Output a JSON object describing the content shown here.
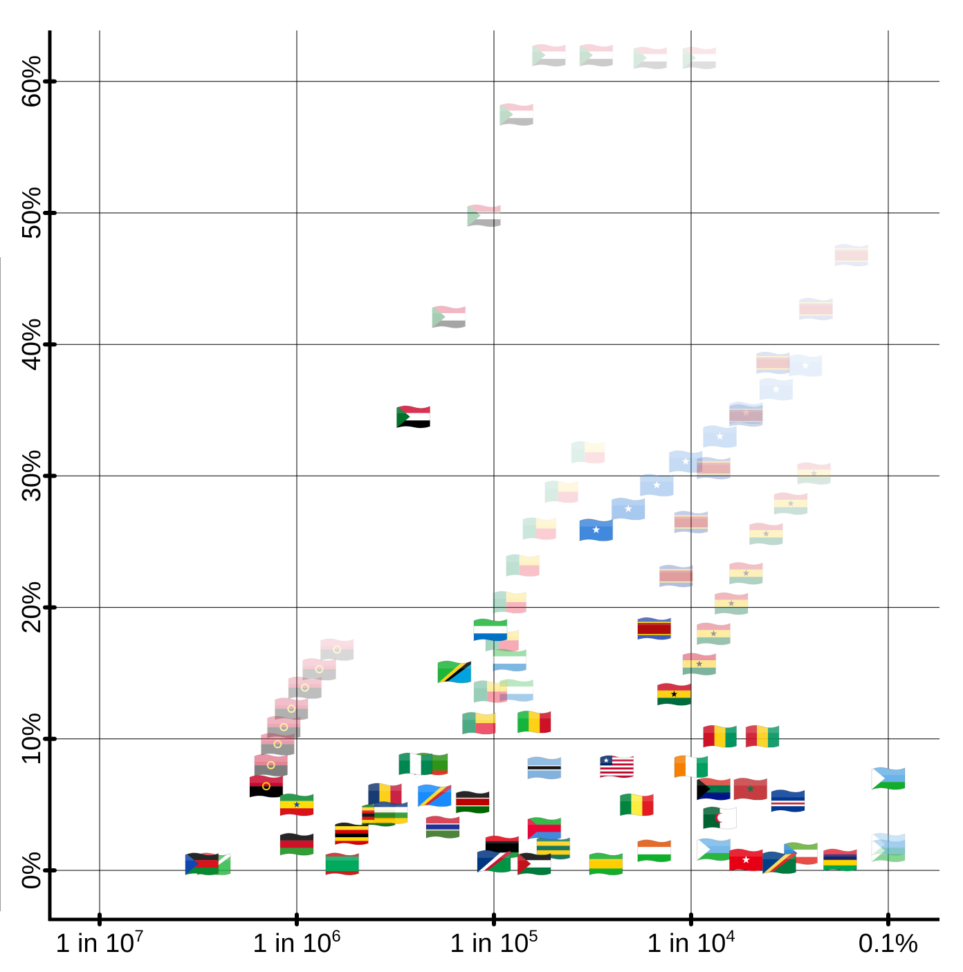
{
  "chart_data": {
    "type": "scatter",
    "title": "",
    "xlabel": "",
    "ylabel": "",
    "x_scale": "log",
    "x_ticks": [
      {
        "value": 1e-07,
        "label": "1 in 10",
        "sup": "7"
      },
      {
        "value": 1e-06,
        "label": "1 in 10",
        "sup": "6"
      },
      {
        "value": 1e-05,
        "label": "1 in 10",
        "sup": "5"
      },
      {
        "value": 0.0001,
        "label": "1 in 10",
        "sup": "4"
      },
      {
        "value": 0.001,
        "label": "0.1%",
        "sup": ""
      }
    ],
    "y_ticks": [
      {
        "value": 0,
        "label": "0%"
      },
      {
        "value": 10,
        "label": "10%"
      },
      {
        "value": 20,
        "label": "20%"
      },
      {
        "value": 30,
        "label": "30%"
      },
      {
        "value": 40,
        "label": "40%"
      },
      {
        "value": 50,
        "label": "50%"
      },
      {
        "value": 60,
        "label": "60%"
      }
    ],
    "xlim": [
      7.8e-08,
      0.0015
    ],
    "ylim": [
      -3.8,
      64
    ],
    "grid": true,
    "marker": "country flag (fading trails show earlier years)",
    "points": [
      {
        "flag": "sudan",
        "x": 3.9e-06,
        "y": 34.5,
        "opacity": 1.0
      },
      {
        "flag": "sudan",
        "x": 5.9e-06,
        "y": 42.1,
        "opacity": 0.35
      },
      {
        "flag": "sudan",
        "x": 8.9e-06,
        "y": 49.8,
        "opacity": 0.3
      },
      {
        "flag": "sudan",
        "x": 1.3e-05,
        "y": 57.5,
        "opacity": 0.25
      },
      {
        "flag": "sudan",
        "x": 1.9e-05,
        "y": 62.0,
        "opacity": 0.2
      },
      {
        "flag": "sudan",
        "x": 3.3e-05,
        "y": 62.0,
        "opacity": 0.2
      },
      {
        "flag": "sudan",
        "x": 6.2e-05,
        "y": 61.8,
        "opacity": 0.15
      },
      {
        "flag": "sudan",
        "x": 0.00011,
        "y": 61.8,
        "opacity": 0.12
      },
      {
        "flag": "somalia",
        "x": 3.3e-05,
        "y": 25.9,
        "opacity": 1.0
      },
      {
        "flag": "somalia",
        "x": 4.8e-05,
        "y": 27.5,
        "opacity": 0.45
      },
      {
        "flag": "somalia",
        "x": 6.7e-05,
        "y": 29.3,
        "opacity": 0.35
      },
      {
        "flag": "somalia",
        "x": 9.4e-05,
        "y": 31.1,
        "opacity": 0.3
      },
      {
        "flag": "somalia",
        "x": 0.00014,
        "y": 33.0,
        "opacity": 0.25
      },
      {
        "flag": "somalia",
        "x": 0.00019,
        "y": 34.8,
        "opacity": 0.2
      },
      {
        "flag": "somalia",
        "x": 0.00027,
        "y": 36.6,
        "opacity": 0.15
      },
      {
        "flag": "somalia",
        "x": 0.00038,
        "y": 38.4,
        "opacity": 0.12
      },
      {
        "flag": "eswatini",
        "x": 6.5e-05,
        "y": 18.4,
        "opacity": 1.0
      },
      {
        "flag": "eswatini",
        "x": 8.4e-05,
        "y": 22.4,
        "opacity": 0.4
      },
      {
        "flag": "eswatini",
        "x": 0.0001,
        "y": 26.5,
        "opacity": 0.35
      },
      {
        "flag": "eswatini",
        "x": 0.00013,
        "y": 30.6,
        "opacity": 0.3
      },
      {
        "flag": "eswatini",
        "x": 0.00019,
        "y": 34.6,
        "opacity": 0.25
      },
      {
        "flag": "eswatini",
        "x": 0.00026,
        "y": 38.6,
        "opacity": 0.2
      },
      {
        "flag": "eswatini",
        "x": 0.00043,
        "y": 42.7,
        "opacity": 0.15
      },
      {
        "flag": "eswatini",
        "x": 0.00065,
        "y": 46.8,
        "opacity": 0.12
      },
      {
        "flag": "ghana",
        "x": 8.2e-05,
        "y": 13.4,
        "opacity": 1.0
      },
      {
        "flag": "ghana",
        "x": 0.00011,
        "y": 15.7,
        "opacity": 0.5
      },
      {
        "flag": "ghana",
        "x": 0.00013,
        "y": 18.0,
        "opacity": 0.4
      },
      {
        "flag": "ghana",
        "x": 0.00016,
        "y": 20.3,
        "opacity": 0.35
      },
      {
        "flag": "ghana",
        "x": 0.00019,
        "y": 22.6,
        "opacity": 0.3
      },
      {
        "flag": "ghana",
        "x": 0.00024,
        "y": 25.6,
        "opacity": 0.25
      },
      {
        "flag": "ghana",
        "x": 0.00032,
        "y": 27.9,
        "opacity": 0.2
      },
      {
        "flag": "ghana",
        "x": 0.00042,
        "y": 30.2,
        "opacity": 0.15
      },
      {
        "flag": "benin",
        "x": 8.4e-06,
        "y": 11.2,
        "opacity": 0.7
      },
      {
        "flag": "benin",
        "x": 9.6e-06,
        "y": 13.6,
        "opacity": 0.4
      },
      {
        "flag": "benin",
        "x": 1.1e-05,
        "y": 17.5,
        "opacity": 0.35
      },
      {
        "flag": "benin",
        "x": 1.2e-05,
        "y": 20.4,
        "opacity": 0.3
      },
      {
        "flag": "benin",
        "x": 1.4e-05,
        "y": 23.2,
        "opacity": 0.25
      },
      {
        "flag": "benin",
        "x": 1.7e-05,
        "y": 26.0,
        "opacity": 0.2
      },
      {
        "flag": "benin",
        "x": 2.2e-05,
        "y": 28.8,
        "opacity": 0.15
      },
      {
        "flag": "benin",
        "x": 3e-05,
        "y": 31.8,
        "opacity": 0.12
      },
      {
        "flag": "sierra-leone",
        "x": 9.6e-06,
        "y": 18.3,
        "opacity": 1.0
      },
      {
        "flag": "sierra-leone",
        "x": 1.2e-05,
        "y": 16.0,
        "opacity": 0.5
      },
      {
        "flag": "sierra-leone",
        "x": 1.3e-05,
        "y": 13.7,
        "opacity": 0.35
      },
      {
        "flag": "tanzania",
        "x": 6.3e-06,
        "y": 15.1,
        "opacity": 1.0
      },
      {
        "flag": "angola",
        "x": 7e-07,
        "y": 6.4,
        "opacity": 1.0
      },
      {
        "flag": "angola",
        "x": 7.4e-07,
        "y": 8.0,
        "opacity": 0.5
      },
      {
        "flag": "angola",
        "x": 8e-07,
        "y": 9.6,
        "opacity": 0.4
      },
      {
        "flag": "angola",
        "x": 8.6e-07,
        "y": 10.9,
        "opacity": 0.35
      },
      {
        "flag": "angola",
        "x": 9.4e-07,
        "y": 12.3,
        "opacity": 0.3
      },
      {
        "flag": "angola",
        "x": 1.1e-06,
        "y": 13.9,
        "opacity": 0.25
      },
      {
        "flag": "angola",
        "x": 1.3e-06,
        "y": 15.3,
        "opacity": 0.2
      },
      {
        "flag": "angola",
        "x": 1.6e-06,
        "y": 16.8,
        "opacity": 0.15
      },
      {
        "flag": "mali",
        "x": 1.6e-05,
        "y": 11.3,
        "opacity": 1.0
      },
      {
        "flag": "guinea",
        "x": 0.00014,
        "y": 10.2,
        "opacity": 1.0
      },
      {
        "flag": "guinea",
        "x": 0.00023,
        "y": 10.2,
        "opacity": 0.9
      },
      {
        "flag": "ivory-coast",
        "x": 0.0001,
        "y": 7.9,
        "opacity": 1.0
      },
      {
        "flag": "liberia",
        "x": 4.2e-05,
        "y": 7.9,
        "opacity": 1.0
      },
      {
        "flag": "nigeria",
        "x": 4e-06,
        "y": 8.1,
        "opacity": 1.0
      },
      {
        "flag": "zambia",
        "x": 4.8e-06,
        "y": 8.1,
        "opacity": 0.9
      },
      {
        "flag": "botswana",
        "x": 1.8e-05,
        "y": 7.8,
        "opacity": 0.9
      },
      {
        "flag": "kenya",
        "x": 7.8e-06,
        "y": 5.2,
        "opacity": 1.0
      },
      {
        "flag": "drc",
        "x": 5e-06,
        "y": 5.7,
        "opacity": 0.9
      },
      {
        "flag": "chad",
        "x": 2.8e-06,
        "y": 5.8,
        "opacity": 0.9
      },
      {
        "flag": "ethiopia",
        "x": 1e-06,
        "y": 5.0,
        "opacity": 1.0
      },
      {
        "flag": "zimbabwe",
        "x": 2.6e-06,
        "y": 4.2,
        "opacity": 0.9
      },
      {
        "flag": "uganda",
        "x": 1.9e-06,
        "y": 2.8,
        "opacity": 1.0
      },
      {
        "flag": "malawi",
        "x": 1e-06,
        "y": 2.0,
        "opacity": 1.0
      },
      {
        "flag": "mauritania",
        "x": 1.7e-06,
        "y": 0.5,
        "opacity": 1.0
      },
      {
        "flag": "south-sudan",
        "x": 3.3e-07,
        "y": 0.5,
        "opacity": 1.0
      },
      {
        "flag": "burundi",
        "x": 3.8e-07,
        "y": 0.5,
        "opacity": 0.8
      },
      {
        "flag": "central-african-republic",
        "x": 3e-06,
        "y": 4.4,
        "opacity": 0.9
      },
      {
        "flag": "gambia",
        "x": 5.5e-06,
        "y": 3.3,
        "opacity": 0.9
      },
      {
        "flag": "eritrea",
        "x": 1.8e-05,
        "y": 3.2,
        "opacity": 1.0
      },
      {
        "flag": "libya",
        "x": 1.1e-05,
        "y": 1.8,
        "opacity": 1.0
      },
      {
        "flag": "namibia",
        "x": 1e-05,
        "y": 0.7,
        "opacity": 1.0
      },
      {
        "flag": "western-sahara",
        "x": 1.6e-05,
        "y": 0.5,
        "opacity": 1.0
      },
      {
        "flag": "togo",
        "x": 2e-05,
        "y": 1.7,
        "opacity": 0.9
      },
      {
        "flag": "sao-tome",
        "x": 3.7e-05,
        "y": 0.5,
        "opacity": 1.0
      },
      {
        "flag": "niger",
        "x": 6.5e-05,
        "y": 1.5,
        "opacity": 1.0
      },
      {
        "flag": "senegal",
        "x": 5.3e-05,
        "y": 5.0,
        "opacity": 1.0
      },
      {
        "flag": "south-africa",
        "x": 0.00013,
        "y": 6.2,
        "opacity": 1.0
      },
      {
        "flag": "morocco",
        "x": 0.0002,
        "y": 6.2,
        "opacity": 0.9
      },
      {
        "flag": "algeria",
        "x": 0.00014,
        "y": 4.0,
        "opacity": 1.0
      },
      {
        "flag": "cape-verde",
        "x": 0.00031,
        "y": 5.3,
        "opacity": 1.0
      },
      {
        "flag": "djibouti",
        "x": 0.00013,
        "y": 1.6,
        "opacity": 0.9
      },
      {
        "flag": "tunisia",
        "x": 0.00019,
        "y": 0.8,
        "opacity": 1.0
      },
      {
        "flag": "seychelles",
        "x": 0.00028,
        "y": 0.6,
        "opacity": 1.0
      },
      {
        "flag": "eq-guinea",
        "x": 0.00036,
        "y": 1.3,
        "opacity": 0.8
      },
      {
        "flag": "mauritius",
        "x": 0.00057,
        "y": 0.8,
        "opacity": 1.0
      },
      {
        "flag": "djibouti",
        "x": 0.001,
        "y": 7.0,
        "opacity": 1.0
      },
      {
        "flag": "djibouti",
        "x": 0.001,
        "y": 1.5,
        "opacity": 0.5
      },
      {
        "flag": "djibouti",
        "x": 0.001,
        "y": 2.0,
        "opacity": 0.4
      }
    ]
  },
  "flags": {
    "sudan": {
      "kind": "h3-tri",
      "colors": [
        "#d21034",
        "#ffffff",
        "#000000"
      ],
      "tri": "#007229"
    },
    "somalia": {
      "kind": "star",
      "colors": [
        "#4189dd"
      ],
      "star": "#ffffff"
    },
    "eswatini": {
      "kind": "h-bands",
      "colors": [
        "#3e5eb9",
        "#ffd900",
        "#b10c0c",
        "#ffd900",
        "#3e5eb9"
      ],
      "weights": [
        2,
        0.5,
        5,
        0.5,
        2
      ]
    },
    "ghana": {
      "kind": "h3-star",
      "colors": [
        "#ce1126",
        "#fcd116",
        "#006b3f"
      ],
      "star": "#000000"
    },
    "benin": {
      "kind": "benin",
      "colors": [
        "#008751",
        "#fcd116",
        "#e8112d"
      ]
    },
    "sierra-leone": {
      "kind": "h3",
      "colors": [
        "#1eb53a",
        "#ffffff",
        "#0072c6"
      ]
    },
    "tanzania": {
      "kind": "diag",
      "colors": [
        "#1eb53a",
        "#fcd116",
        "#000000",
        "#00a3dd"
      ]
    },
    "angola": {
      "kind": "h2-emblem",
      "colors": [
        "#cc092f",
        "#000000"
      ],
      "emblem": "#ffcb00"
    },
    "mali": {
      "kind": "v3",
      "colors": [
        "#14b53a",
        "#fcd116",
        "#ce1126"
      ]
    },
    "guinea": {
      "kind": "v3",
      "colors": [
        "#ce1126",
        "#fcd116",
        "#009460"
      ]
    },
    "ivory-coast": {
      "kind": "v3",
      "colors": [
        "#f77f00",
        "#ffffff",
        "#009e60"
      ]
    },
    "liberia": {
      "kind": "stripes-canton",
      "colors": [
        "#bf0a30",
        "#ffffff"
      ],
      "canton": "#002868"
    },
    "nigeria": {
      "kind": "v3",
      "colors": [
        "#008751",
        "#ffffff",
        "#008751"
      ]
    },
    "zambia": {
      "kind": "h-bands",
      "colors": [
        "#198a00",
        "#198a00",
        "#de2010"
      ],
      "weights": [
        3,
        1,
        1
      ]
    },
    "botswana": {
      "kind": "h-bands",
      "colors": [
        "#75aadb",
        "#ffffff",
        "#000000",
        "#ffffff",
        "#75aadb"
      ],
      "weights": [
        4,
        0.5,
        1.5,
        0.5,
        4
      ]
    },
    "kenya": {
      "kind": "h-bands",
      "colors": [
        "#000000",
        "#ffffff",
        "#bb0000",
        "#ffffff",
        "#006600"
      ],
      "weights": [
        3,
        0.4,
        3,
        0.4,
        3
      ]
    },
    "drc": {
      "kind": "diag",
      "colors": [
        "#007fff",
        "#f7d618",
        "#ce1021",
        "#007fff"
      ]
    },
    "chad": {
      "kind": "v3",
      "colors": [
        "#002664",
        "#fecb00",
        "#c60c30"
      ]
    },
    "ethiopia": {
      "kind": "h3-star",
      "colors": [
        "#078930",
        "#fcdd09",
        "#da121a"
      ],
      "star": "#0f47af"
    },
    "zimbabwe": {
      "kind": "h-bands",
      "colors": [
        "#006400",
        "#ffd200",
        "#d40000",
        "#000000",
        "#d40000",
        "#ffd200",
        "#006400"
      ],
      "weights": [
        1,
        1,
        1,
        1,
        1,
        1,
        1
      ]
    },
    "uganda": {
      "kind": "h-bands",
      "colors": [
        "#000000",
        "#fcdc04",
        "#d90000",
        "#000000",
        "#fcdc04",
        "#d90000"
      ],
      "weights": [
        1,
        1,
        1,
        1,
        1,
        1
      ]
    },
    "malawi": {
      "kind": "h3",
      "colors": [
        "#000000",
        "#ce1126",
        "#339e35"
      ]
    },
    "mauritania": {
      "kind": "h-bands",
      "colors": [
        "#d01c1f",
        "#00a95c",
        "#d01c1f"
      ],
      "weights": [
        1,
        4,
        1
      ]
    },
    "south-sudan": {
      "kind": "h3-tri",
      "colors": [
        "#000000",
        "#da121a",
        "#078930"
      ],
      "tri": "#0f47af"
    },
    "burundi": {
      "kind": "diag",
      "colors": [
        "#ce1126",
        "#1eb53a",
        "#ffffff",
        "#1eb53a"
      ]
    },
    "central-african-republic": {
      "kind": "h-bands",
      "colors": [
        "#003082",
        "#ffffff",
        "#289728",
        "#ffce00"
      ],
      "weights": [
        1,
        1,
        1,
        1
      ]
    },
    "gambia": {
      "kind": "h-bands",
      "colors": [
        "#ce1126",
        "#ffffff",
        "#0c1c8c",
        "#ffffff",
        "#3a7728"
      ],
      "weights": [
        3,
        0.4,
        2,
        0.4,
        3
      ]
    },
    "eritrea": {
      "kind": "h3-tri",
      "colors": [
        "#12ad2b",
        "#ea0437",
        "#4189dd"
      ],
      "tri": "#ea0437"
    },
    "libya": {
      "kind": "h-bands",
      "colors": [
        "#e70013",
        "#000000",
        "#239e46"
      ],
      "weights": [
        1,
        2,
        1
      ]
    },
    "namibia": {
      "kind": "diag",
      "colors": [
        "#003580",
        "#ffffff",
        "#d21034",
        "#009543"
      ]
    },
    "western-sahara": {
      "kind": "h3-tri",
      "colors": [
        "#000000",
        "#ffffff",
        "#007a3d"
      ],
      "tri": "#c4111b"
    },
    "togo": {
      "kind": "h-bands",
      "colors": [
        "#006a4e",
        "#ffce00",
        "#006a4e",
        "#ffce00",
        "#006a4e"
      ],
      "weights": [
        1,
        1,
        1,
        1,
        1
      ]
    },
    "sao-tome": {
      "kind": "h-bands",
      "colors": [
        "#12ad2b",
        "#ffce00",
        "#12ad2b"
      ],
      "weights": [
        1,
        1.5,
        1
      ]
    },
    "niger": {
      "kind": "h3",
      "colors": [
        "#e05206",
        "#ffffff",
        "#0db02b"
      ]
    },
    "senegal": {
      "kind": "v3",
      "colors": [
        "#00853f",
        "#fdef42",
        "#e31b23"
      ]
    },
    "south-africa": {
      "kind": "h3-tri",
      "colors": [
        "#e03c31",
        "#007749",
        "#001489"
      ],
      "tri": "#000000"
    },
    "morocco": {
      "kind": "star",
      "colors": [
        "#c1272d"
      ],
      "star": "#006233"
    },
    "algeria": {
      "kind": "v2",
      "colors": [
        "#006233",
        "#ffffff"
      ]
    },
    "cape-verde": {
      "kind": "h-bands",
      "colors": [
        "#003893",
        "#ffffff",
        "#cf2027",
        "#ffffff",
        "#003893"
      ],
      "weights": [
        6,
        1,
        1,
        1,
        3
      ]
    },
    "djibouti": {
      "kind": "h3-tri",
      "colors": [
        "#6ab2e7",
        "#6ab2e7",
        "#12ad2b"
      ],
      "tri": "#ffffff"
    },
    "tunisia": {
      "kind": "star",
      "colors": [
        "#e70013"
      ],
      "star": "#ffffff"
    },
    "seychelles": {
      "kind": "diag",
      "colors": [
        "#003f87",
        "#fcd856",
        "#d62828",
        "#007a3d"
      ]
    },
    "eq-guinea": {
      "kind": "h3-tri",
      "colors": [
        "#3e9a00",
        "#ffffff",
        "#e32118"
      ],
      "tri": "#0073ce"
    },
    "mauritius": {
      "kind": "h-bands",
      "colors": [
        "#ea2839",
        "#1a206d",
        "#ffd500",
        "#00a551"
      ],
      "weights": [
        1,
        1,
        1,
        1
      ]
    }
  }
}
